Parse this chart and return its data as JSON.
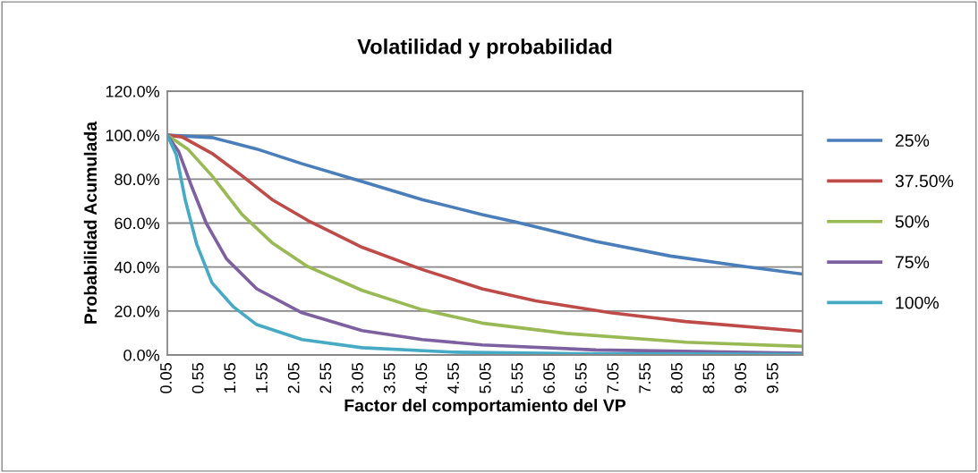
{
  "chart_data": {
    "type": "line",
    "title": "Volatilidad y probabilidad",
    "xlabel": "Factor del comportamiento del VP",
    "ylabel": "Probabilidad Acumulada",
    "xlim": [
      0.05,
      10.0
    ],
    "xticks": [
      0.05,
      0.55,
      1.05,
      1.55,
      2.05,
      2.55,
      3.05,
      3.55,
      4.05,
      4.55,
      5.05,
      5.55,
      6.05,
      6.55,
      7.05,
      7.55,
      8.05,
      8.55,
      9.05,
      9.55
    ],
    "ylim": [
      0,
      120
    ],
    "yticks": [
      {
        "value": 0,
        "label": "0.0%"
      },
      {
        "value": 20,
        "label": "20.0%"
      },
      {
        "value": 40,
        "label": "40.0%"
      },
      {
        "value": 60,
        "label": "60.0%"
      },
      {
        "value": 80,
        "label": "80.0%"
      },
      {
        "value": 100,
        "label": "100.0%"
      },
      {
        "value": 120,
        "label": "120.0%"
      }
    ],
    "grid": "y",
    "legend": "right",
    "marker": "none",
    "line_style": "solid",
    "series": [
      {
        "name": "25%",
        "color": "#4a7ebb",
        "x": [
          0.05,
          0.75,
          1.45,
          2.16,
          3.1,
          4.04,
          4.98,
          5.49,
          6.76,
          7.93,
          9.11,
          10.0
        ],
        "values": [
          100,
          98.9,
          93.7,
          87.0,
          78.9,
          70.7,
          63.9,
          60.6,
          51.7,
          45.0,
          40.2,
          36.8
        ]
      },
      {
        "name": "37.50%",
        "color": "#be4b48",
        "x": [
          0.05,
          0.28,
          0.75,
          1.22,
          1.69,
          2.25,
          3.1,
          4.04,
          4.98,
          5.82,
          6.99,
          8.17,
          10.0
        ],
        "values": [
          100,
          99.2,
          91.7,
          81.5,
          70.7,
          61.2,
          49.0,
          38.9,
          30.1,
          24.6,
          19.2,
          15.2,
          10.8
        ]
      },
      {
        "name": "50%",
        "color": "#98b954",
        "x": [
          0.05,
          0.37,
          0.75,
          1.22,
          1.69,
          2.25,
          3.1,
          4.04,
          4.98,
          6.29,
          8.17,
          10.0
        ],
        "values": [
          100,
          93.7,
          81.5,
          63.9,
          51.1,
          40.2,
          29.4,
          20.6,
          14.5,
          9.8,
          5.8,
          3.9
        ]
      },
      {
        "name": "75%",
        "color": "#7d60a0",
        "x": [
          0.05,
          0.23,
          0.42,
          0.66,
          0.98,
          1.45,
          2.16,
          3.1,
          4.04,
          4.98,
          6.76,
          10.0
        ],
        "values": [
          100,
          92.4,
          77.5,
          59.9,
          43.6,
          30.1,
          19.2,
          11.1,
          7.0,
          4.6,
          2.3,
          0.8
        ]
      },
      {
        "name": "100%",
        "color": "#46aac5",
        "x": [
          0.05,
          0.19,
          0.33,
          0.51,
          0.75,
          1.08,
          1.45,
          2.16,
          3.1,
          4.5,
          6.5,
          10.0
        ],
        "values": [
          100,
          91.1,
          70.7,
          50.4,
          32.8,
          22.0,
          13.8,
          7.0,
          3.3,
          1.3,
          0.6,
          0.3
        ]
      }
    ]
  }
}
